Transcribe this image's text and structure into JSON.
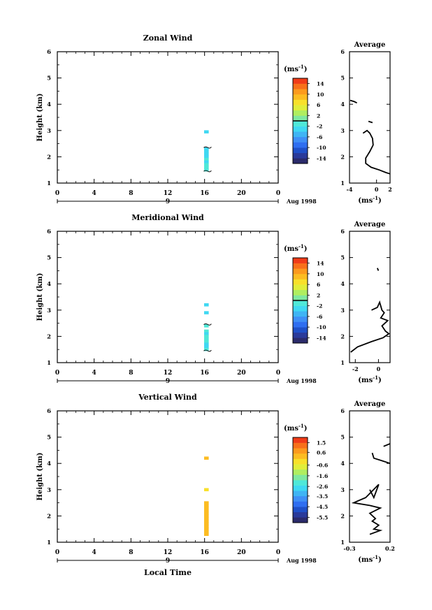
{
  "figure": {
    "xlabel": "Local Time",
    "date_label": "Aug 1998",
    "day_label": "9",
    "average_title": "Average",
    "ylabel": "Height (km)",
    "unit_label": "(ms",
    "unit_exp": "-1",
    "unit_close": ")"
  },
  "colormap": [
    "#2b2b6b",
    "#2a3a9a",
    "#1f50c8",
    "#2f6ef0",
    "#3f8ff6",
    "#3fb4f4",
    "#3fd8f2",
    "#4fe8d8",
    "#7fe8a0",
    "#b0ee60",
    "#e0ee3a",
    "#f8e02a",
    "#fcbc22",
    "#fc9a1e",
    "#f8701a",
    "#f03c18"
  ],
  "chart_data": [
    {
      "type": "heatmap",
      "title": "Zonal Wind",
      "xlim": [
        0,
        24
      ],
      "ylim": [
        1,
        6
      ],
      "xticks": [
        "0",
        "4",
        "8",
        "12",
        "16",
        "20",
        "0"
      ],
      "yticks": [
        "1",
        "2",
        "3",
        "4",
        "5",
        "6"
      ],
      "colorbar": {
        "min": -16,
        "max": 16,
        "ticks": [
          14,
          10,
          6,
          2,
          -2,
          -6,
          -10,
          -14
        ],
        "contour": 0
      },
      "cells": [
        {
          "t": 16.2,
          "h": 2.95,
          "v": -4
        },
        {
          "t": 16.2,
          "h": 2.3,
          "v": -4
        },
        {
          "t": 16.2,
          "h": 2.2,
          "v": -3
        },
        {
          "t": 16.2,
          "h": 2.1,
          "v": -4
        },
        {
          "t": 16.2,
          "h": 2.0,
          "v": -3
        },
        {
          "t": 16.2,
          "h": 1.9,
          "v": -2
        },
        {
          "t": 16.2,
          "h": 1.8,
          "v": -3
        },
        {
          "t": 16.2,
          "h": 1.7,
          "v": -1
        },
        {
          "t": 16.2,
          "h": 1.6,
          "v": -2
        },
        {
          "t": 16.2,
          "h": 1.5,
          "v": -1
        }
      ],
      "profile": {
        "title": "Average",
        "xlim": [
          -4,
          2
        ],
        "xticks": [
          "-4",
          "0",
          "2"
        ],
        "ylim": [
          1,
          6
        ],
        "yticks": [
          "1",
          "2",
          "3",
          "4",
          "5",
          "6"
        ],
        "segments": [
          [
            [
              -3.9,
              4.15
            ],
            [
              -3.3,
              4.1
            ],
            [
              -2.9,
              4.05
            ]
          ],
          [
            [
              -1.2,
              3.35
            ],
            [
              -0.6,
              3.3
            ]
          ],
          [
            [
              -2.0,
              2.9
            ],
            [
              -1.4,
              3.0
            ],
            [
              -1.0,
              2.9
            ],
            [
              -0.6,
              2.7
            ],
            [
              -0.5,
              2.45
            ],
            [
              -1.0,
              2.2
            ],
            [
              -1.6,
              1.95
            ],
            [
              -1.6,
              1.75
            ],
            [
              -0.8,
              1.6
            ],
            [
              0.4,
              1.5
            ],
            [
              1.4,
              1.4
            ],
            [
              2.0,
              1.35
            ]
          ]
        ]
      }
    },
    {
      "type": "heatmap",
      "title": "Meridional Wind",
      "xlim": [
        0,
        24
      ],
      "ylim": [
        1,
        6
      ],
      "xticks": [
        "0",
        "4",
        "8",
        "12",
        "16",
        "20",
        "0"
      ],
      "yticks": [
        "1",
        "2",
        "3",
        "4",
        "5",
        "6"
      ],
      "colorbar": {
        "min": -16,
        "max": 16,
        "ticks": [
          14,
          10,
          6,
          2,
          -2,
          -6,
          -10,
          -14
        ],
        "contour": 0
      },
      "cells": [
        {
          "t": 16.2,
          "h": 3.2,
          "v": -4
        },
        {
          "t": 16.2,
          "h": 2.9,
          "v": -3
        },
        {
          "t": 16.2,
          "h": 2.4,
          "v": -2
        },
        {
          "t": 16.2,
          "h": 2.2,
          "v": -1
        },
        {
          "t": 16.2,
          "h": 2.1,
          "v": -3
        },
        {
          "t": 16.2,
          "h": 2.0,
          "v": -2
        },
        {
          "t": 16.2,
          "h": 1.9,
          "v": -1
        },
        {
          "t": 16.2,
          "h": 1.8,
          "v": -2
        },
        {
          "t": 16.2,
          "h": 1.7,
          "v": -4
        },
        {
          "t": 16.2,
          "h": 1.6,
          "v": -3
        },
        {
          "t": 16.2,
          "h": 1.5,
          "v": -2
        }
      ],
      "profile": {
        "title": "Average",
        "xlim": [
          -2.5,
          1.0
        ],
        "xticks": [
          "-2",
          "0"
        ],
        "ylim": [
          1,
          6
        ],
        "yticks": [
          "1",
          "2",
          "3",
          "4",
          "5",
          "6"
        ],
        "segments": [
          [
            [
              -0.1,
              4.6
            ],
            [
              0.0,
              4.5
            ]
          ],
          [
            [
              -0.6,
              3.0
            ],
            [
              -0.1,
              3.1
            ],
            [
              0.1,
              3.3
            ],
            [
              0.3,
              3.0
            ],
            [
              0.5,
              2.9
            ],
            [
              0.2,
              2.7
            ],
            [
              0.8,
              2.6
            ],
            [
              0.3,
              2.4
            ],
            [
              0.6,
              2.2
            ],
            [
              0.9,
              2.1
            ],
            [
              0.4,
              1.95
            ],
            [
              -0.6,
              1.8
            ],
            [
              -1.8,
              1.6
            ],
            [
              -2.4,
              1.4
            ]
          ]
        ]
      }
    },
    {
      "type": "heatmap",
      "title": "Vertical Wind",
      "xlim": [
        0,
        24
      ],
      "ylim": [
        1,
        6
      ],
      "xticks": [
        "0",
        "4",
        "8",
        "12",
        "16",
        "20",
        "0"
      ],
      "yticks": [
        "1",
        "2",
        "3",
        "4",
        "5",
        "6"
      ],
      "colorbar": {
        "min": -6.0,
        "max": 2.0,
        "ticks": [
          1.5,
          0.6,
          -0.6,
          -1.6,
          -2.6,
          -3.5,
          -4.5,
          -5.5
        ],
        "contour": null
      },
      "cells": [
        {
          "t": 16.2,
          "h": 4.2,
          "v": 0.3
        },
        {
          "t": 16.2,
          "h": 3.0,
          "v": -0.2
        },
        {
          "t": 16.2,
          "h": 2.5,
          "v": 0.2
        },
        {
          "t": 16.2,
          "h": 2.4,
          "v": 0.4
        },
        {
          "t": 16.2,
          "h": 2.3,
          "v": 0.1
        },
        {
          "t": 16.2,
          "h": 2.2,
          "v": 0.3
        },
        {
          "t": 16.2,
          "h": 2.1,
          "v": 0.2
        },
        {
          "t": 16.2,
          "h": 2.0,
          "v": 0.4
        },
        {
          "t": 16.2,
          "h": 1.9,
          "v": 0.1
        },
        {
          "t": 16.2,
          "h": 1.8,
          "v": 0.3
        },
        {
          "t": 16.2,
          "h": 1.7,
          "v": 0.2
        },
        {
          "t": 16.2,
          "h": 1.6,
          "v": 0.4
        },
        {
          "t": 16.2,
          "h": 1.5,
          "v": 0.3
        },
        {
          "t": 16.2,
          "h": 1.4,
          "v": 0.2
        },
        {
          "t": 16.2,
          "h": 1.3,
          "v": 0.1
        }
      ],
      "profile": {
        "title": "Average",
        "xlim": [
          -0.3,
          0.2
        ],
        "xticks": [
          "-0.3",
          "0.2"
        ],
        "ylim": [
          1,
          6
        ],
        "yticks": [
          "1",
          "2",
          "3",
          "4",
          "5",
          "6"
        ],
        "segments": [
          [
            [
              0.12,
              4.65
            ],
            [
              0.2,
              4.75
            ]
          ],
          [
            [
              -0.02,
              4.4
            ],
            [
              0.0,
              4.2
            ],
            [
              0.1,
              4.1
            ],
            [
              0.2,
              4.0
            ]
          ],
          [
            [
              -0.05,
              3.0
            ],
            [
              0.0,
              2.7
            ],
            [
              0.06,
              3.2
            ],
            [
              -0.1,
              2.7
            ],
            [
              -0.25,
              2.5
            ],
            [
              -0.05,
              2.4
            ],
            [
              0.08,
              2.3
            ],
            [
              -0.05,
              2.1
            ],
            [
              0.02,
              1.9
            ],
            [
              -0.02,
              1.8
            ],
            [
              0.06,
              1.65
            ],
            [
              0.0,
              1.5
            ],
            [
              0.08,
              1.45
            ],
            [
              -0.05,
              1.3
            ]
          ]
        ]
      }
    }
  ]
}
